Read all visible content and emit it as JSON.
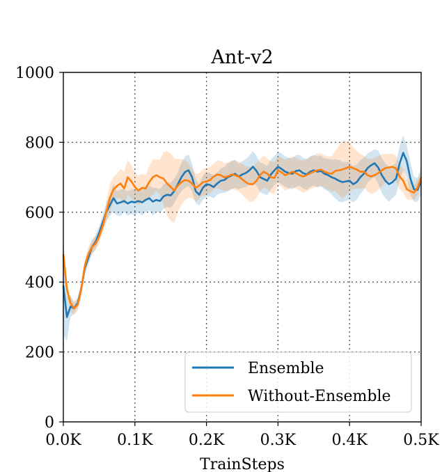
{
  "chart_data": {
    "type": "line",
    "title": "Ant-v2",
    "xlabel": "TrainSteps",
    "ylabel": "",
    "xlim": [
      0,
      500
    ],
    "ylim": [
      0,
      1000
    ],
    "x_tick_values": [
      0,
      100,
      200,
      300,
      400,
      500
    ],
    "x_tick_labels": [
      "0.0K",
      "0.1K",
      "0.2K",
      "0.3K",
      "0.4K",
      "0.5K"
    ],
    "y_tick_values": [
      0,
      200,
      400,
      600,
      800,
      1000
    ],
    "y_tick_labels": [
      "0",
      "200",
      "400",
      "600",
      "800",
      "1000"
    ],
    "grid": true,
    "legend_position": "lower-right",
    "x": [
      0,
      5,
      10,
      15,
      20,
      25,
      30,
      35,
      40,
      45,
      50,
      55,
      60,
      65,
      70,
      75,
      80,
      85,
      90,
      95,
      100,
      105,
      110,
      115,
      120,
      125,
      130,
      135,
      140,
      145,
      150,
      155,
      160,
      165,
      170,
      175,
      180,
      185,
      190,
      195,
      200,
      205,
      210,
      215,
      220,
      225,
      230,
      235,
      240,
      245,
      250,
      255,
      260,
      265,
      270,
      275,
      280,
      285,
      290,
      295,
      300,
      305,
      310,
      315,
      320,
      325,
      330,
      335,
      340,
      345,
      350,
      355,
      360,
      365,
      370,
      375,
      380,
      385,
      390,
      395,
      400,
      405,
      410,
      415,
      420,
      425,
      430,
      435,
      440,
      445,
      450,
      455,
      460,
      465,
      470,
      475,
      480,
      485,
      490,
      495,
      500
    ],
    "series": [
      {
        "name": "Ensemble",
        "color": "#1f77b4",
        "values": [
          390,
          300,
          330,
          325,
          340,
          380,
          440,
          470,
          500,
          515,
          540,
          570,
          600,
          620,
          640,
          625,
          628,
          632,
          625,
          630,
          628,
          632,
          628,
          635,
          640,
          630,
          635,
          632,
          645,
          650,
          648,
          660,
          680,
          700,
          715,
          720,
          700,
          660,
          650,
          670,
          680,
          678,
          672,
          682,
          690,
          692,
          700,
          705,
          710,
          702,
          708,
          712,
          720,
          730,
          718,
          700,
          695,
          690,
          708,
          720,
          730,
          724,
          716,
          712,
          710,
          718,
          720,
          712,
          708,
          716,
          720,
          716,
          718,
          710,
          706,
          700,
          696,
          690,
          686,
          688,
          690,
          680,
          686,
          700,
          710,
          726,
          734,
          740,
          728,
          706,
          690,
          680,
          686,
          696,
          740,
          770,
          746,
          696,
          666,
          664,
          690
        ],
        "lower": [
          250,
          230,
          300,
          310,
          325,
          360,
          420,
          450,
          480,
          495,
          520,
          550,
          575,
          590,
          600,
          590,
          590,
          600,
          590,
          595,
          590,
          600,
          590,
          600,
          605,
          590,
          600,
          598,
          610,
          615,
          612,
          625,
          645,
          660,
          670,
          675,
          660,
          625,
          620,
          635,
          645,
          645,
          640,
          650,
          655,
          655,
          660,
          665,
          670,
          665,
          670,
          672,
          678,
          685,
          675,
          658,
          652,
          648,
          665,
          678,
          688,
          680,
          672,
          668,
          666,
          672,
          676,
          668,
          664,
          672,
          676,
          672,
          674,
          666,
          660,
          650,
          640,
          630,
          628,
          632,
          636,
          628,
          636,
          652,
          664,
          684,
          694,
          700,
          680,
          656,
          640,
          630,
          640,
          650,
          690,
          720,
          700,
          650,
          630,
          630,
          650
        ],
        "upper": [
          470,
          360,
          360,
          340,
          355,
          400,
          460,
          490,
          520,
          535,
          560,
          590,
          625,
          650,
          680,
          660,
          665,
          665,
          660,
          665,
          665,
          665,
          665,
          670,
          675,
          670,
          670,
          666,
          680,
          685,
          684,
          695,
          715,
          740,
          760,
          765,
          740,
          695,
          680,
          705,
          715,
          712,
          704,
          714,
          725,
          729,
          740,
          745,
          750,
          739,
          746,
          752,
          762,
          775,
          761,
          742,
          738,
          732,
          751,
          762,
          772,
          768,
          760,
          756,
          754,
          764,
          764,
          756,
          752,
          760,
          764,
          760,
          762,
          754,
          752,
          750,
          752,
          750,
          744,
          744,
          744,
          732,
          736,
          748,
          756,
          768,
          774,
          780,
          776,
          756,
          740,
          730,
          732,
          742,
          790,
          820,
          792,
          742,
          702,
          698,
          730
        ]
      },
      {
        "name": "Without-Ensemble",
        "color": "#ff7f0e",
        "values": [
          480,
          380,
          340,
          325,
          335,
          380,
          445,
          480,
          500,
          510,
          530,
          560,
          600,
          640,
          665,
          675,
          682,
          668,
          700,
          688,
          672,
          662,
          670,
          668,
          686,
          700,
          706,
          700,
          696,
          682,
          672,
          662,
          676,
          686,
          692,
          690,
          682,
          670,
          676,
          686,
          688,
          692,
          702,
          708,
          706,
          700,
          702,
          708,
          706,
          702,
          694,
          686,
          680,
          680,
          690,
          706,
          716,
          710,
          700,
          698,
          720,
          714,
          706,
          710,
          716,
          712,
          706,
          702,
          706,
          712,
          716,
          720,
          722,
          716,
          712,
          710,
          718,
          720,
          722,
          726,
          730,
          726,
          722,
          716,
          716,
          706,
          702,
          706,
          712,
          720,
          726,
          728,
          730,
          725,
          702,
          690,
          666,
          660,
          656,
          670,
          700
        ],
        "lower": [
          440,
          360,
          320,
          305,
          318,
          360,
          425,
          460,
          480,
          490,
          510,
          540,
          570,
          600,
          630,
          640,
          640,
          620,
          650,
          640,
          630,
          620,
          630,
          630,
          640,
          650,
          660,
          650,
          620,
          590,
          575,
          570,
          600,
          620,
          635,
          640,
          640,
          630,
          640,
          648,
          650,
          655,
          665,
          668,
          665,
          660,
          662,
          668,
          664,
          660,
          650,
          640,
          630,
          630,
          640,
          660,
          670,
          666,
          655,
          652,
          680,
          672,
          662,
          666,
          672,
          668,
          662,
          656,
          660,
          666,
          670,
          672,
          676,
          670,
          664,
          660,
          660,
          650,
          640,
          648,
          660,
          666,
          668,
          666,
          670,
          660,
          652,
          656,
          664,
          674,
          684,
          690,
          692,
          688,
          666,
          656,
          636,
          636,
          636,
          648,
          680
        ],
        "upper": [
          520,
          400,
          360,
          345,
          352,
          400,
          465,
          500,
          520,
          530,
          550,
          580,
          630,
          680,
          700,
          710,
          724,
          716,
          750,
          736,
          714,
          704,
          710,
          706,
          732,
          750,
          752,
          750,
          772,
          774,
          769,
          754,
          752,
          752,
          749,
          740,
          724,
          710,
          712,
          724,
          726,
          729,
          739,
          748,
          747,
          740,
          742,
          748,
          748,
          744,
          738,
          732,
          730,
          730,
          740,
          752,
          762,
          754,
          745,
          744,
          760,
          756,
          750,
          754,
          760,
          756,
          750,
          748,
          752,
          758,
          762,
          768,
          768,
          762,
          760,
          760,
          776,
          790,
          804,
          804,
          800,
          786,
          776,
          766,
          762,
          752,
          752,
          756,
          760,
          766,
          768,
          766,
          768,
          762,
          738,
          724,
          696,
          684,
          676,
          692,
          720
        ]
      }
    ]
  }
}
